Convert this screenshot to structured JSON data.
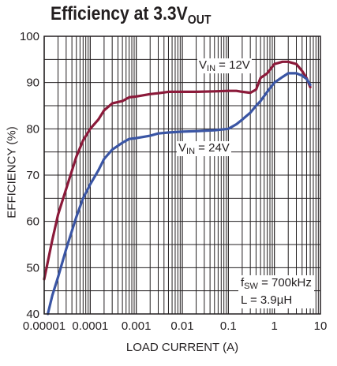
{
  "chart_data": {
    "type": "line",
    "title": {
      "main": "Efficiency at 3.3V",
      "sub": "OUT"
    },
    "xlabel": "LOAD CURRENT (A)",
    "ylabel": "EFFICIENCY (%)",
    "xscale": "log",
    "xlim": [
      1e-05,
      10
    ],
    "ylim": [
      40,
      100
    ],
    "xticks": [
      "0.00001",
      "0.0001",
      "0.001",
      "0.01",
      "0.1",
      "1",
      "10"
    ],
    "yticks": [
      "40",
      "50",
      "60",
      "70",
      "80",
      "90",
      "100"
    ],
    "grid": true,
    "series": [
      {
        "label": {
          "pre": "V",
          "sub": "IN",
          "post": " = 12V"
        },
        "color": "#8b1a3a",
        "x": [
          1e-05,
          1.5e-05,
          2e-05,
          3e-05,
          5e-05,
          7e-05,
          0.0001,
          0.00015,
          0.0002,
          0.0003,
          0.0005,
          0.0007,
          0.001,
          0.002,
          0.003,
          0.005,
          0.01,
          0.02,
          0.05,
          0.1,
          0.15,
          0.2,
          0.3,
          0.4,
          0.5,
          0.7,
          1.0,
          1.5,
          2.0,
          3.0,
          4.0,
          5.0,
          6.0
        ],
        "y": [
          47.5,
          56,
          61.5,
          67,
          74,
          77.5,
          80,
          82,
          84,
          85.5,
          86,
          86.8,
          87,
          87.5,
          87.7,
          88,
          88,
          88,
          88.1,
          88.2,
          88.2,
          88,
          87.8,
          88.5,
          91,
          92,
          94,
          94.5,
          94.5,
          94,
          92.5,
          91,
          89
        ]
      },
      {
        "label": {
          "pre": "V",
          "sub": "IN",
          "post": " = 24V"
        },
        "color": "#3a55a4",
        "x": [
          1.2e-05,
          1.5e-05,
          2e-05,
          3e-05,
          5e-05,
          7e-05,
          0.0001,
          0.00015,
          0.0002,
          0.0003,
          0.0005,
          0.0007,
          0.001,
          0.002,
          0.003,
          0.005,
          0.01,
          0.02,
          0.05,
          0.1,
          0.15,
          0.2,
          0.3,
          0.4,
          0.5,
          0.7,
          1.0,
          1.5,
          2.0,
          3.0,
          4.0,
          5.0,
          6.0
        ],
        "y": [
          40,
          44,
          48,
          54,
          61,
          65,
          68,
          71,
          73.5,
          75.5,
          77,
          77.8,
          78,
          78.5,
          79,
          79.2,
          79.4,
          79.5,
          79.7,
          80,
          81,
          82,
          83.5,
          85,
          86,
          88,
          90,
          91.2,
          92,
          92,
          91.5,
          90.8,
          89.5
        ]
      }
    ],
    "annotation": {
      "line1": {
        "pre": "f",
        "sub": "SW",
        "post": " = 700kHz"
      },
      "line2": "L = 3.9µH"
    }
  }
}
